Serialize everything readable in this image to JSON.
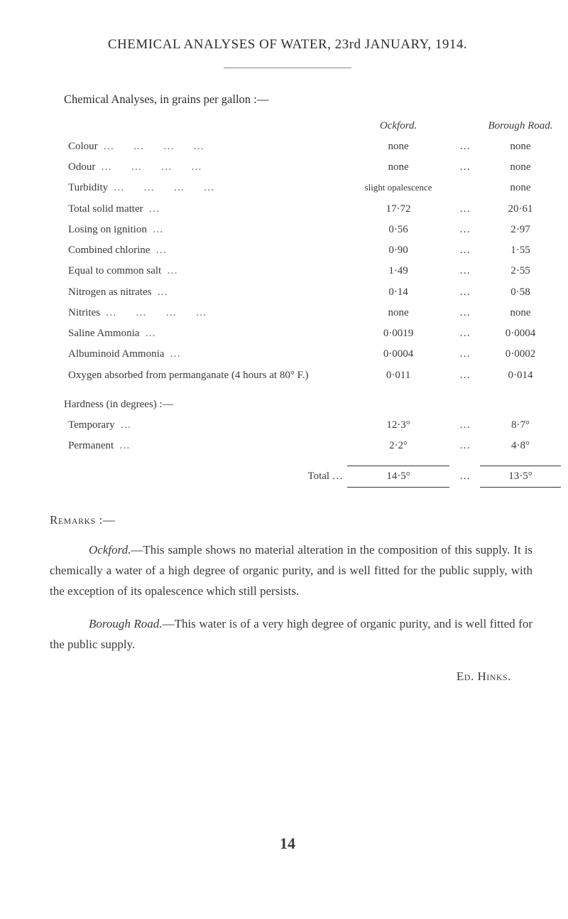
{
  "title": "CHEMICAL ANALYSES OF WATER, 23rd JANUARY, 1914.",
  "header": {
    "intro": "Chemical Analyses, in grains per gallon :—",
    "col1": "Ockford.",
    "col2": "Borough Road."
  },
  "rows": [
    {
      "label": "Colour",
      "ock": "none",
      "bor": "none"
    },
    {
      "label": "Odour",
      "ock": "none",
      "bor": "none"
    },
    {
      "label": "Turbidity",
      "ock": "slight opalescence",
      "bor": "none"
    },
    {
      "label": "Total solid matter",
      "ock": "17·72",
      "bor": "20·61"
    },
    {
      "label": "Losing on ignition",
      "indent": 2,
      "ock": "0·56",
      "bor": "2·97"
    },
    {
      "label": "Combined chlorine",
      "ock": "0·90",
      "bor": "1·55"
    },
    {
      "label": "Equal to common salt",
      "indent": 2,
      "ock": "1·49",
      "bor": "2·55"
    },
    {
      "label": "Nitrogen as nitrates",
      "ock": "0·14",
      "bor": "0·58"
    },
    {
      "label": "Nitrites",
      "ock": "none",
      "bor": "none"
    },
    {
      "label": "Saline Ammonia",
      "ock": "0·0019",
      "bor": "0·0004"
    },
    {
      "label": "Albuminoid Ammonia",
      "ock": "0·0004",
      "bor": "0·0002"
    },
    {
      "label": "Oxygen absorbed from permanganate (4 hours at 80° F.)",
      "ock": "0·011",
      "bor": "0·014"
    }
  ],
  "hardness": {
    "header": "Hardness (in degrees) :—",
    "rows": [
      {
        "label": "Temporary",
        "ock": "12·3°",
        "bor": "8·7°"
      },
      {
        "label": "Permanent",
        "ock": "2·2°",
        "bor": "4·8°"
      }
    ],
    "total_label": "Total  …",
    "total_ock": "14·5°",
    "total_bor": "13·5°"
  },
  "remarks": {
    "header": "Remarks :—",
    "para1_em": "Ockford.",
    "para1": "—This sample shows no material alteration in the composition of this supply. It is chemically a water of a high degree of organic purity, and is well fitted for the public supply, with the exception of its opalescence which still persists.",
    "para2_em": "Borough Road.",
    "para2": "—This water is of a very high degree of organic purity, and is well fitted for the public supply."
  },
  "signature": "Ed. Hinks.",
  "page_number": "14"
}
